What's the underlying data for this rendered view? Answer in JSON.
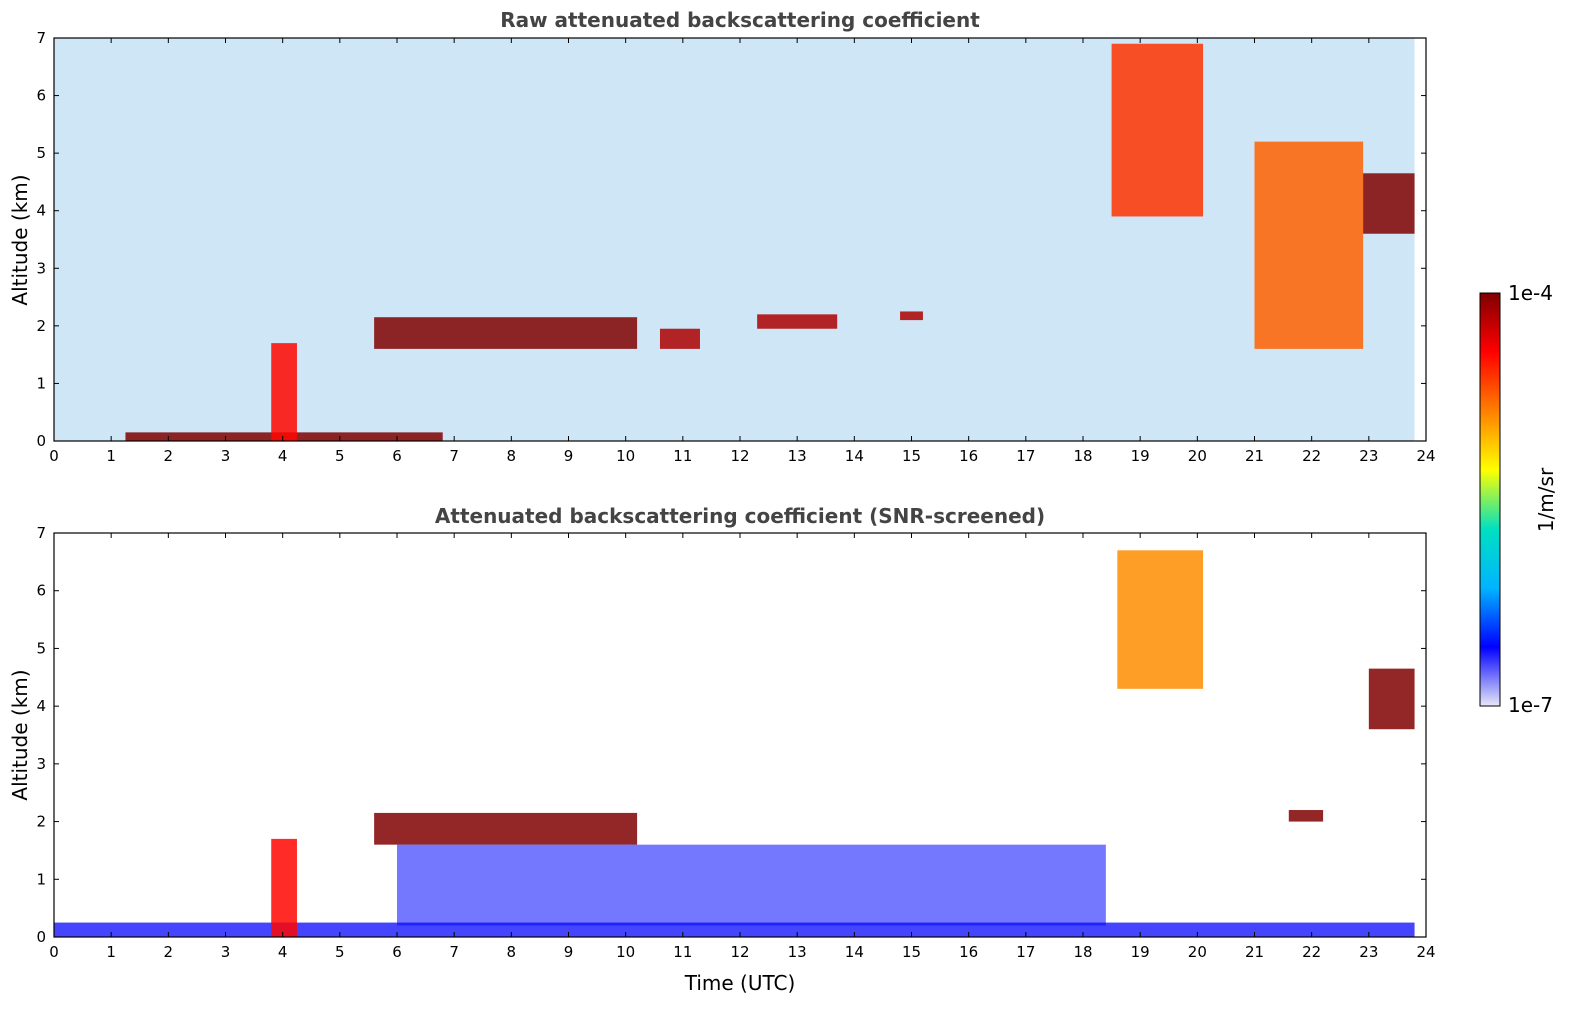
{
  "chart_data": [
    {
      "type": "heatmap",
      "title": "Raw attenuated backscattering coefficient",
      "xlabel": "",
      "ylabel": "Altitude (km)",
      "xlim": [
        0,
        24
      ],
      "ylim": [
        0,
        7
      ],
      "xticks": [
        "0",
        "1",
        "2",
        "3",
        "4",
        "5",
        "6",
        "7",
        "8",
        "9",
        "10",
        "11",
        "12",
        "13",
        "14",
        "15",
        "16",
        "17",
        "18",
        "19",
        "20",
        "21",
        "22",
        "23",
        "24"
      ],
      "yticks": [
        "0",
        "1",
        "2",
        "3",
        "4",
        "5",
        "6",
        "7"
      ],
      "data_end_time": 23.8,
      "features": [
        {
          "kind": "boundary_layer",
          "t": [
            1.25,
            6.8
          ],
          "alt": [
            0.0,
            0.15
          ],
          "level": 1.0
        },
        {
          "kind": "plume",
          "t": [
            3.8,
            4.25
          ],
          "alt": [
            0.0,
            1.7
          ],
          "level": 0.85
        },
        {
          "kind": "cloud_layer",
          "t": [
            5.6,
            10.2
          ],
          "alt": [
            1.6,
            2.15
          ],
          "level": 1.0
        },
        {
          "kind": "cloud_layer",
          "t": [
            10.6,
            11.3
          ],
          "alt": [
            1.6,
            1.95
          ],
          "level": 0.95
        },
        {
          "kind": "cloud_layer",
          "t": [
            12.3,
            13.7
          ],
          "alt": [
            1.95,
            2.2
          ],
          "level": 0.95
        },
        {
          "kind": "cloud_layer",
          "t": [
            14.8,
            15.2
          ],
          "alt": [
            2.1,
            2.25
          ],
          "level": 0.95
        },
        {
          "kind": "cirrus",
          "t": [
            18.5,
            20.1
          ],
          "alt": [
            3.9,
            6.9
          ],
          "level": 0.8
        },
        {
          "kind": "cirrus",
          "t": [
            21.0,
            22.9
          ],
          "alt": [
            1.6,
            5.2
          ],
          "level": 0.75
        },
        {
          "kind": "cloud_layer",
          "t": [
            22.9,
            23.8
          ],
          "alt": [
            3.6,
            4.65
          ],
          "level": 1.0
        }
      ]
    },
    {
      "type": "heatmap",
      "title": "Attenuated backscattering coefficient (SNR-screened)",
      "xlabel": "Time (UTC)",
      "ylabel": "Altitude (km)",
      "xlim": [
        0,
        24
      ],
      "ylim": [
        0,
        7
      ],
      "xticks": [
        "0",
        "1",
        "2",
        "3",
        "4",
        "5",
        "6",
        "7",
        "8",
        "9",
        "10",
        "11",
        "12",
        "13",
        "14",
        "15",
        "16",
        "17",
        "18",
        "19",
        "20",
        "21",
        "22",
        "23",
        "24"
      ],
      "yticks": [
        "0",
        "1",
        "2",
        "3",
        "4",
        "5",
        "6",
        "7"
      ],
      "data_end_time": 23.8,
      "features": [
        {
          "kind": "boundary_layer",
          "t": [
            0.0,
            23.8
          ],
          "alt": [
            0.0,
            0.25
          ],
          "level": 0.12
        },
        {
          "kind": "plume",
          "t": [
            3.8,
            4.25
          ],
          "alt": [
            0.0,
            1.7
          ],
          "level": 0.85
        },
        {
          "kind": "cloud_layer",
          "t": [
            5.6,
            10.2
          ],
          "alt": [
            1.6,
            2.15
          ],
          "level": 1.0
        },
        {
          "kind": "aerosol",
          "t": [
            6.0,
            18.4
          ],
          "alt": [
            0.2,
            1.6
          ],
          "level": 0.15
        },
        {
          "kind": "cirrus",
          "t": [
            18.6,
            20.1
          ],
          "alt": [
            4.3,
            6.7
          ],
          "level": 0.7
        },
        {
          "kind": "cloud_layer",
          "t": [
            21.6,
            22.2
          ],
          "alt": [
            2.0,
            2.2
          ],
          "level": 1.0
        },
        {
          "kind": "cloud_layer",
          "t": [
            23.0,
            23.8
          ],
          "alt": [
            3.6,
            4.65
          ],
          "level": 1.0
        }
      ]
    }
  ],
  "colorbar": {
    "label": "1/m/sr",
    "max_label": "1e-4",
    "min_label": "1e-7",
    "colormap": [
      "#e8e8f8",
      "#0000ff",
      "#00b4ff",
      "#00e0c0",
      "#ffff00",
      "#ff8000",
      "#ff0000",
      "#800000"
    ]
  }
}
